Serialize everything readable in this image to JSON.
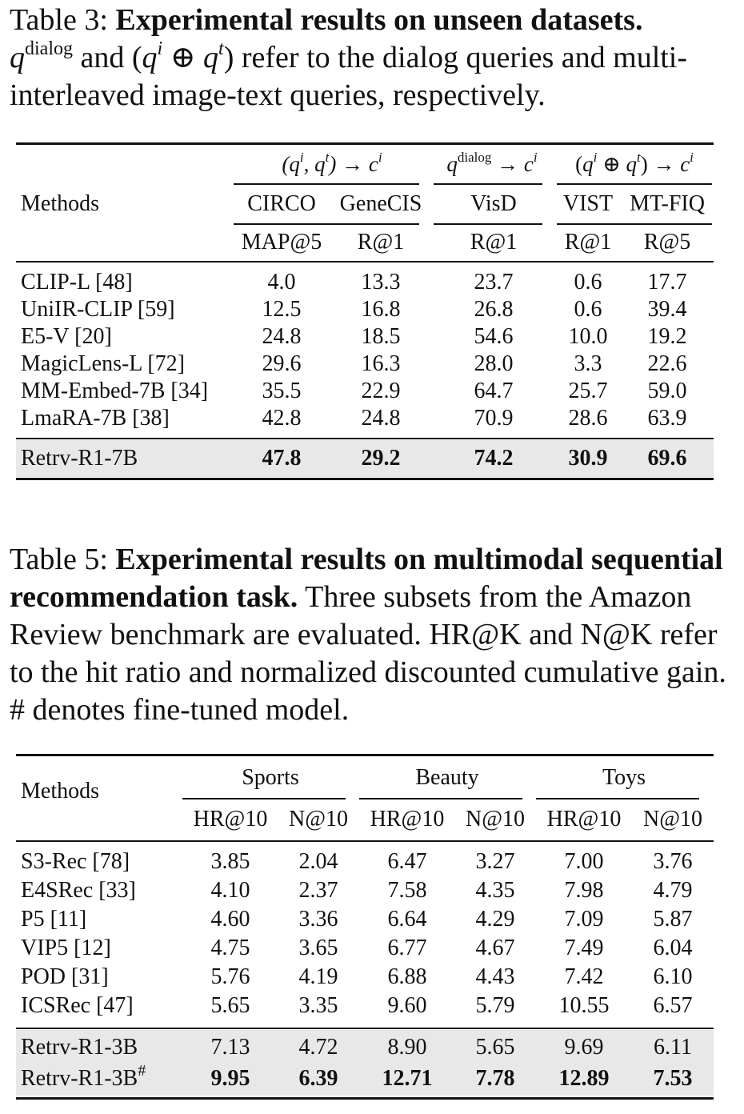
{
  "table3": {
    "caption_label": "Table 3:",
    "caption_bold": "Experimental results on unseen datasets.",
    "caption_text_1": "and",
    "caption_text_2": "refer to the dialog queries and multi-interleaved image-text queries, respectively.",
    "header": {
      "methods": "Methods",
      "groups": [
        "(qi, qt) → ci",
        "qdialog → ci",
        "(qi ⊕ qt) → ci"
      ],
      "datasets": [
        "CIRCO",
        "GeneCIS",
        "VisD",
        "VIST",
        "MT-FIQ"
      ],
      "metrics": [
        "MAP@5",
        "R@1",
        "R@1",
        "R@1",
        "R@5"
      ]
    },
    "rows": [
      {
        "method": "CLIP-L [48]",
        "values": [
          "4.0",
          "13.3",
          "23.7",
          "0.6",
          "17.7"
        ]
      },
      {
        "method": "UniIR-CLIP [59]",
        "values": [
          "12.5",
          "16.8",
          "26.8",
          "0.6",
          "39.4"
        ]
      },
      {
        "method": "E5-V [20]",
        "values": [
          "24.8",
          "18.5",
          "54.6",
          "10.0",
          "19.2"
        ]
      },
      {
        "method": "MagicLens-L [72]",
        "values": [
          "29.6",
          "16.3",
          "28.0",
          "3.3",
          "22.6"
        ]
      },
      {
        "method": "MM-Embed-7B [34]",
        "values": [
          "35.5",
          "22.9",
          "64.7",
          "25.7",
          "59.0"
        ]
      },
      {
        "method": "LmaRA-7B [38]",
        "values": [
          "42.8",
          "24.8",
          "70.9",
          "28.6",
          "63.9"
        ]
      }
    ],
    "highlight": {
      "method": "Retrv-R1-7B",
      "values": [
        "47.8",
        "29.2",
        "74.2",
        "30.9",
        "69.6"
      ]
    }
  },
  "table5": {
    "caption_label": "Table 5:",
    "caption_bold": "Experimental results on multimodal sequential recommendation task.",
    "caption_text": "Three subsets from the Amazon Review benchmark are evaluated. HR@K and N@K refer to the hit ratio and normalized discounted cumulative gain. # denotes fine-tuned model.",
    "header": {
      "methods": "Methods",
      "groups": [
        "Sports",
        "Beauty",
        "Toys"
      ],
      "metrics": [
        "HR@10",
        "N@10",
        "HR@10",
        "N@10",
        "HR@10",
        "N@10"
      ]
    },
    "rows": [
      {
        "method": "S3-Rec [78]",
        "values": [
          "3.85",
          "2.04",
          "6.47",
          "3.27",
          "7.00",
          "3.76"
        ]
      },
      {
        "method": "E4SRec [33]",
        "values": [
          "4.10",
          "2.37",
          "7.58",
          "4.35",
          "7.98",
          "4.79"
        ]
      },
      {
        "method": "P5 [11]",
        "values": [
          "4.60",
          "3.36",
          "6.64",
          "4.29",
          "7.09",
          "5.87"
        ]
      },
      {
        "method": "VIP5 [12]",
        "values": [
          "4.75",
          "3.65",
          "6.77",
          "4.67",
          "7.49",
          "6.04"
        ]
      },
      {
        "method": "POD [31]",
        "values": [
          "5.76",
          "4.19",
          "6.88",
          "4.43",
          "7.42",
          "6.10"
        ]
      },
      {
        "method": "ICSRec [47]",
        "values": [
          "5.65",
          "3.35",
          "9.60",
          "5.79",
          "10.55",
          "6.57"
        ]
      }
    ],
    "ours": [
      {
        "method": "Retrv-R1-3B",
        "mark": "",
        "values": [
          "7.13",
          "4.72",
          "8.90",
          "5.65",
          "9.69",
          "6.11"
        ]
      },
      {
        "method": "Retrv-R1-3B",
        "mark": "#",
        "values": [
          "9.95",
          "6.39",
          "12.71",
          "7.78",
          "12.89",
          "7.53"
        ]
      }
    ]
  }
}
